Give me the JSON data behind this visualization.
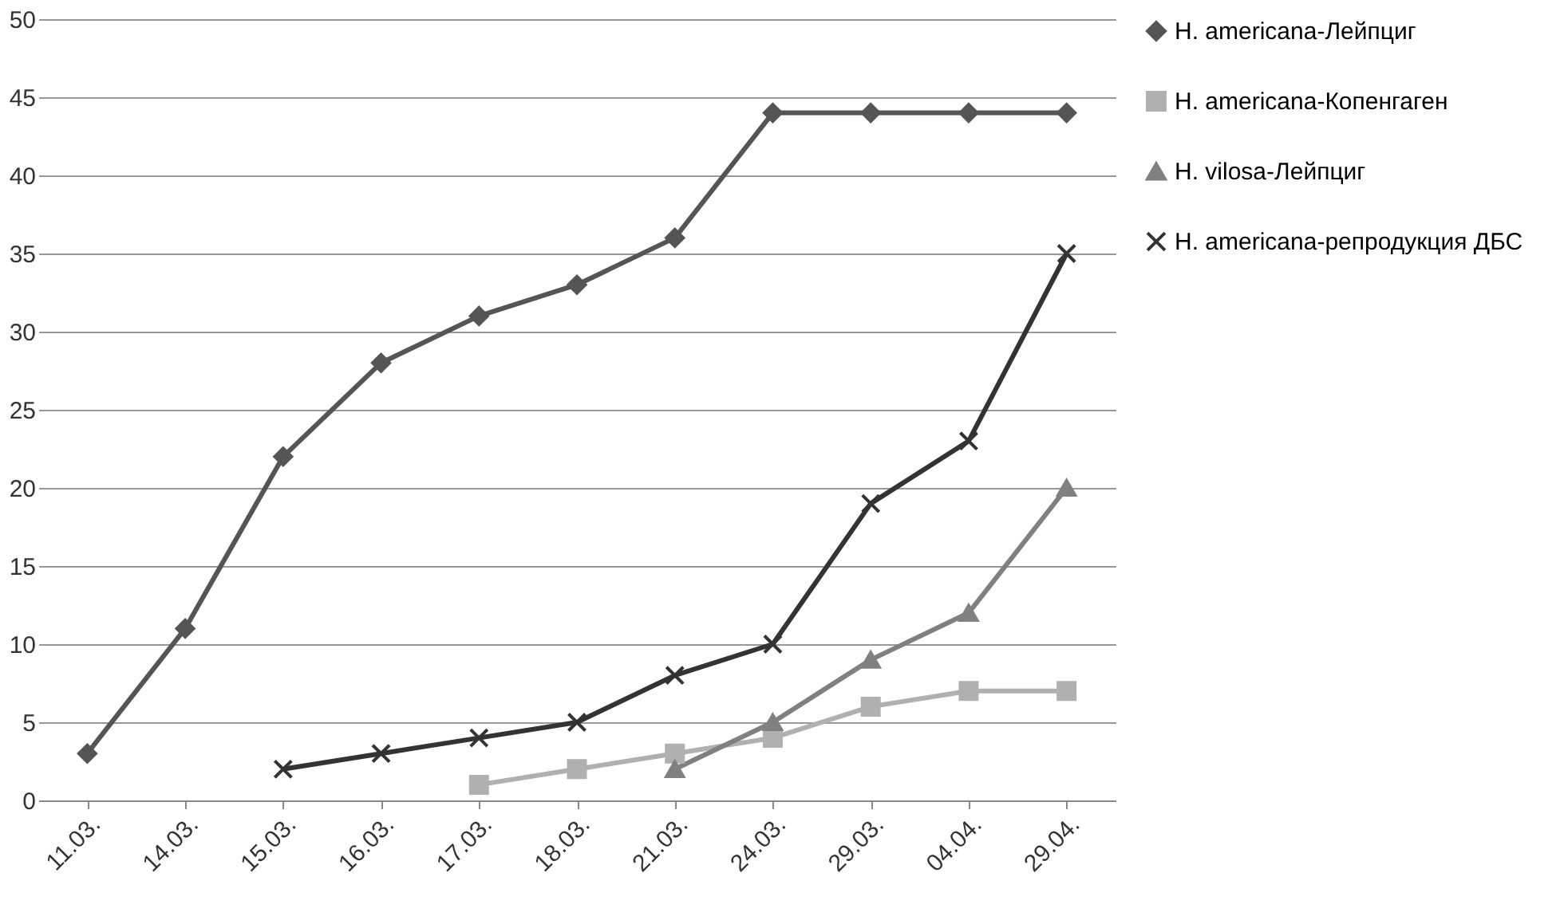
{
  "chart_data": {
    "type": "line",
    "categories": [
      "11.03.",
      "14.03.",
      "15.03.",
      "16.03.",
      "17.03.",
      "18.03.",
      "21.03.",
      "24.03.",
      "29.03.",
      "04.04.",
      "29.04."
    ],
    "series": [
      {
        "name": "H. americana-Лейпциг",
        "color": "#555555",
        "marker": "diamond",
        "values": [
          3,
          11,
          22,
          28,
          31,
          33,
          36,
          44,
          44,
          44,
          44
        ]
      },
      {
        "name": "H. americana-Копенгаген",
        "color": "#b0b0b0",
        "marker": "square",
        "values": [
          null,
          null,
          null,
          null,
          1,
          2,
          3,
          4,
          6,
          7,
          7
        ]
      },
      {
        "name": "H. vilosa-Лейпциг",
        "color": "#808080",
        "marker": "triangle",
        "values": [
          null,
          null,
          null,
          null,
          null,
          null,
          2,
          5,
          9,
          12,
          20
        ]
      },
      {
        "name": "H. americana-репродукция ДБС",
        "color": "#333333",
        "marker": "cross",
        "values": [
          null,
          null,
          2,
          3,
          4,
          5,
          8,
          10,
          19,
          23,
          35
        ]
      }
    ],
    "ylim": [
      0,
      50
    ],
    "yticks": [
      0,
      5,
      10,
      15,
      20,
      25,
      30,
      35,
      40,
      45,
      50
    ],
    "grid": "y",
    "legend": "right",
    "line_style": "solid"
  }
}
